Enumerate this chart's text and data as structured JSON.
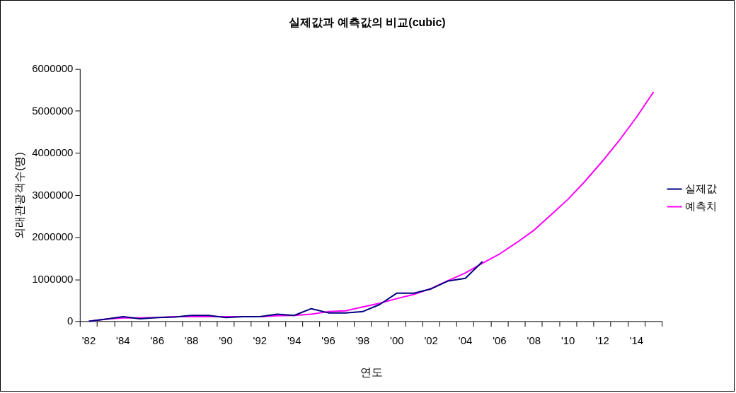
{
  "chart_data": {
    "type": "line",
    "title": "실제값과 예측값의 비교(cubic)",
    "xlabel": "연도",
    "ylabel": "외래관광객수(명)",
    "categories": [
      "'82",
      null,
      "'84",
      null,
      "'86",
      null,
      "'88",
      null,
      "'90",
      null,
      "'92",
      null,
      "'94",
      null,
      "'96",
      null,
      "'98",
      null,
      "'00",
      null,
      "'02",
      null,
      "'04",
      null,
      "'06",
      null,
      "'08",
      null,
      "'10",
      null,
      "'12",
      null,
      "'14",
      null
    ],
    "series": [
      {
        "name": "실제값",
        "color": "#000080",
        "values": [
          10000,
          60000,
          120000,
          70000,
          100000,
          110000,
          150000,
          150000,
          100000,
          120000,
          120000,
          180000,
          150000,
          310000,
          210000,
          210000,
          240000,
          410000,
          680000,
          680000,
          780000,
          970000,
          1030000,
          1430000,
          null,
          null,
          null,
          null,
          null,
          null,
          null,
          null,
          null,
          null
        ]
      },
      {
        "name": "예측치",
        "color": "#ff00ff",
        "values": [
          10000,
          60000,
          90000,
          90000,
          100000,
          120000,
          120000,
          120000,
          120000,
          120000,
          120000,
          140000,
          150000,
          180000,
          240000,
          260000,
          350000,
          440000,
          550000,
          650000,
          790000,
          980000,
          1160000,
          1390000,
          1610000,
          1880000,
          2170000,
          2540000,
          2910000,
          3340000,
          3810000,
          4310000,
          4860000,
          5460000
        ]
      }
    ],
    "ylim": [
      0,
      6000000
    ],
    "yticks": [
      0,
      1000000,
      2000000,
      3000000,
      4000000,
      5000000,
      6000000
    ],
    "grid": false,
    "legend": "right",
    "marker": "none",
    "line_style": "solid"
  }
}
